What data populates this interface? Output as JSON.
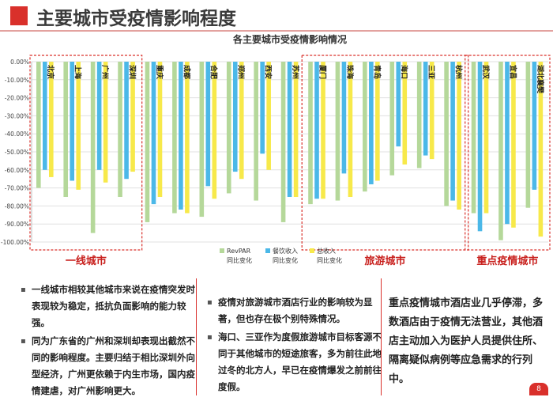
{
  "header": {
    "title": "主要城市受疫情影响程度"
  },
  "chart_data": {
    "type": "bar",
    "title": "各主要城市受疫情影响情况",
    "categories": [
      "北京",
      "上海",
      "广州",
      "深圳",
      "重庆",
      "成都",
      "合肥",
      "郑州",
      "西安",
      "苏州",
      "厦门",
      "珠海",
      "青岛",
      "海口",
      "三亚",
      "杭州",
      "武汉",
      "宜昌",
      "湖北襄樊"
    ],
    "y_ticks": [
      "0.00%",
      "-10.00%",
      "-20.00%",
      "-30.00%",
      "-40.00%",
      "-50.00%",
      "-60.00%",
      "-70.00%",
      "-80.00%",
      "-90.00%",
      "-100.00%"
    ],
    "ylim": [
      -100,
      0
    ],
    "grid": true,
    "legend_position": "bottom",
    "series": [
      {
        "name": "RevPAR同比变化",
        "color": "#b5d89a",
        "values": [
          -70,
          -75,
          -95,
          -75,
          -89,
          -84,
          -86,
          -73,
          -77,
          -89,
          -79,
          -77,
          -72,
          -63,
          -59,
          -80,
          -84,
          -99,
          -81
        ]
      },
      {
        "name": "餐饮收入同比变化",
        "color": "#4bb8e8",
        "values": [
          -60,
          -66,
          -60,
          -65,
          -79,
          -82,
          -69,
          -61,
          -51,
          -75,
          -76,
          -62,
          -68,
          -47,
          -52,
          -77,
          -94,
          -90,
          -71
        ]
      },
      {
        "name": "总收入同比变化",
        "color": "#f7e94a",
        "values": [
          -64,
          -71,
          -67,
          -61,
          -75,
          -84,
          -76,
          -65,
          -60,
          -75,
          -76,
          -75,
          -66,
          -57,
          -54,
          -82,
          -84,
          -92,
          -97
        ]
      }
    ],
    "groups": [
      {
        "label": "一线城市",
        "from": 0,
        "to": 3
      },
      {
        "label": "旅游城市",
        "from": 10,
        "to": 15
      },
      {
        "label": "重点疫情城市",
        "from": 16,
        "to": 18
      }
    ]
  },
  "text_blocks": {
    "col1": [
      "一线城市相较其他城市来说在疫情突发时表现较为稳定，抵抗负面影响的能力较强。",
      "同为广东省的广州和深圳却表现出截然不同的影响程度。主要归结于相比深圳外向型经济，广州更依赖于内生市场，国内疫情建虐，对广州影响更大。"
    ],
    "col2": [
      "疫情对旅游城市酒店行业的影响较为显著，但也存在极个别特殊情况。",
      "海口、三亚作为度假旅游城市目标客源不同于其他城市的短途旅客，多为前往此地过冬的北方人，早已在疫情爆发之前前往度假。"
    ],
    "col3": [
      "重点疫情城市酒店业几乎停滞，多数酒店由于疫情无法营业，其他酒店主动加入为医护人员提供住所、隔离疑似病例等应急需求的行列中。"
    ]
  },
  "page_number": "8"
}
